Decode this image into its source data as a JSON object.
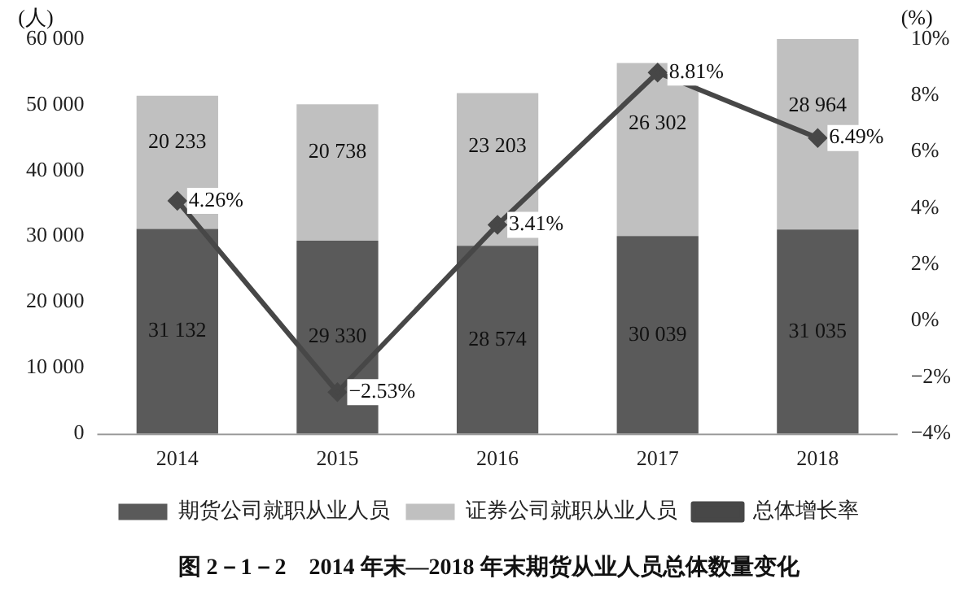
{
  "chart_data": {
    "type": "bar",
    "stacked": true,
    "title": "图 2－1－2　2014 年末—2018 年末期货从业人员总体数量变化",
    "ylabel": "(人)",
    "y2label": "(%)",
    "categories": [
      "2014",
      "2015",
      "2016",
      "2017",
      "2018"
    ],
    "series": [
      {
        "name": "期货公司就职从业人员",
        "color": "#5a5a5a",
        "values": [
          31132,
          29330,
          28574,
          30039,
          31035
        ],
        "value_labels": [
          "31 132",
          "29 330",
          "28 574",
          "30 039",
          "31 035"
        ]
      },
      {
        "name": "证券公司就职从业人员",
        "color": "#c0c0c0",
        "values": [
          20233,
          20738,
          23203,
          26302,
          28964
        ],
        "value_labels": [
          "20 233",
          "20 738",
          "23 203",
          "26 302",
          "28 964"
        ]
      },
      {
        "name": "总体增长率",
        "type": "line",
        "axis": "y2",
        "color": "#474747",
        "marker": "diamond",
        "values": [
          4.26,
          -2.53,
          3.41,
          8.81,
          6.49
        ],
        "value_labels": [
          "4.26%",
          "−2.53%",
          "3.41%",
          "8.81%",
          "6.49%"
        ]
      }
    ],
    "ylim": [
      0,
      60000
    ],
    "yticks": [
      0,
      {
        "value": 10000,
        "label": "10 000"
      },
      {
        "value": 20000,
        "label": "20 000"
      },
      {
        "value": 30000,
        "label": "30 000"
      },
      {
        "value": 40000,
        "label": "40 000"
      },
      {
        "value": 50000,
        "label": "50 000"
      },
      {
        "value": 60000,
        "label": "60 000"
      }
    ],
    "y2lim": [
      -4,
      10
    ],
    "y2ticks": [
      {
        "value": -4,
        "label": "−4%"
      },
      {
        "value": -2,
        "label": "−2%"
      },
      {
        "value": 0,
        "label": "0%"
      },
      {
        "value": 2,
        "label": "2%"
      },
      {
        "value": 4,
        "label": "4%"
      },
      {
        "value": 6,
        "label": "6%"
      },
      {
        "value": 8,
        "label": "8%"
      },
      {
        "value": 10,
        "label": "10%"
      }
    ],
    "grid": false,
    "legend": "bottom"
  }
}
